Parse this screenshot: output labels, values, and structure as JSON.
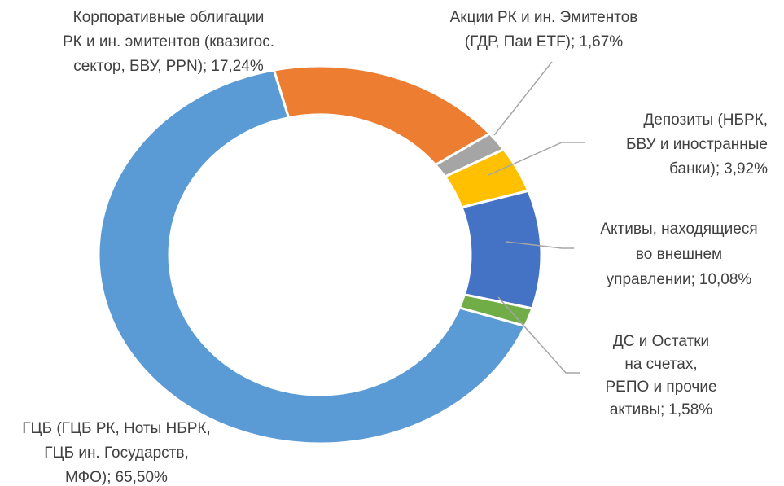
{
  "chart_data": {
    "type": "donut",
    "categories": [
      [
        "Корпоративные облигации",
        "РК и ин. эмитентов (квазигос.",
        "сектор, БВУ, PPN);"
      ],
      [
        "Акции РК и ин. Эмитентов",
        "(ГДР, Паи ETF);"
      ],
      [
        "Депозиты (НБРК,",
        "БВУ и иностранные",
        "банки);"
      ],
      [
        "Активы, находящиеся",
        "во внешнем",
        "управлении;"
      ],
      [
        "ДС и Остатки",
        "на счетах,",
        "РЕПО и прочие",
        "активы;"
      ],
      [
        "ГЦБ (ГЦБ РК, Ноты НБРК,",
        "ГЦБ ин. Государств,",
        "МФО);"
      ]
    ],
    "values": [
      17.24,
      1.67,
      3.92,
      10.08,
      1.58,
      65.5
    ],
    "value_labels": [
      "17,24%",
      "1,67%",
      "3,92%",
      "10,08%",
      "1,58%",
      "65,50%"
    ],
    "colors": [
      "#ED7D31",
      "#A5A5A5",
      "#FFC000",
      "#4472C4",
      "#70AD47",
      "#5B9BD5"
    ]
  }
}
